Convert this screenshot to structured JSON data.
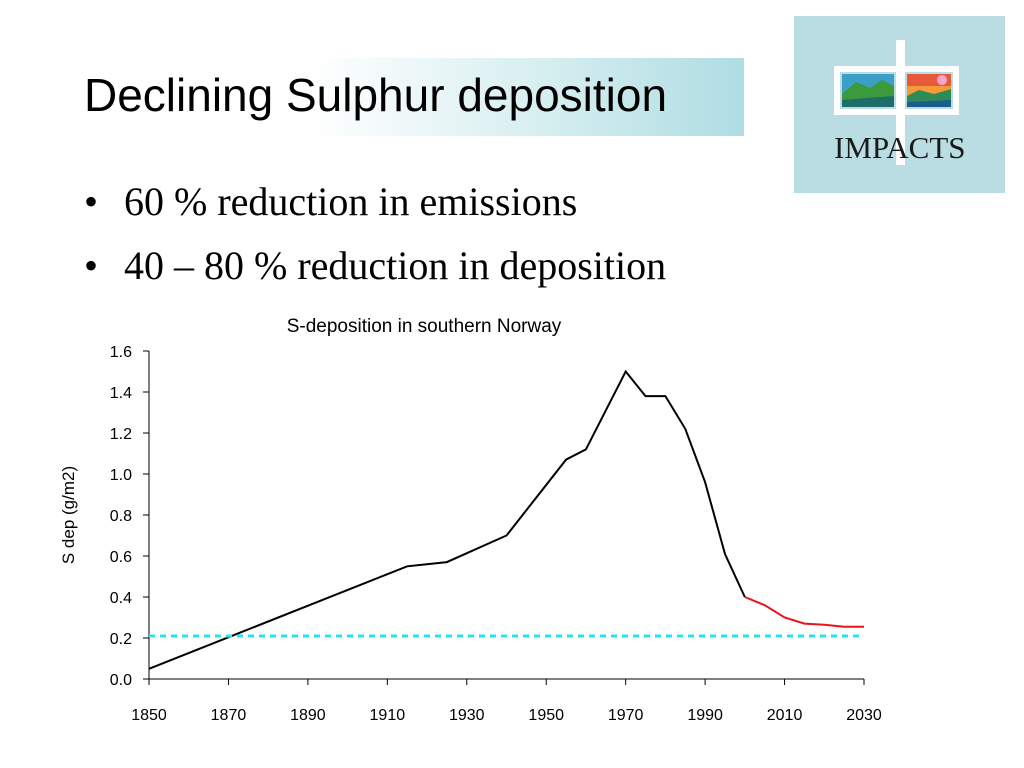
{
  "slide": {
    "title": "Declining Sulphur deposition",
    "bullets": [
      "60 % reduction in emissions",
      "40 – 80 % reduction in deposition"
    ],
    "bullet_glyph": "•",
    "logo_text": "IMPACTS"
  },
  "colors": {
    "observed_line": "#000000",
    "projected_line": "#e8141c",
    "reference_line": "#22e4f0",
    "logo_background": "#b9dde3"
  },
  "chart_data": {
    "type": "line",
    "title": "S-deposition in southern Norway",
    "xlabel": "",
    "ylabel": "S dep  (g/m2)",
    "xlim": [
      1850,
      2030
    ],
    "ylim": [
      0.0,
      1.6
    ],
    "x_ticks": [
      "1850",
      "1870",
      "1890",
      "1910",
      "1930",
      "1950",
      "1970",
      "1990",
      "2010",
      "2030"
    ],
    "y_ticks": [
      "0.0",
      "0.2",
      "0.4",
      "0.6",
      "0.8",
      "1.0",
      "1.2",
      "1.4",
      "1.6"
    ],
    "grid": false,
    "series": [
      {
        "role": "observed",
        "color": "#000000",
        "x": [
          1850,
          1915,
          1925,
          1940,
          1955,
          1960,
          1970,
          1975,
          1980,
          1985,
          1990,
          1995,
          2000
        ],
        "y": [
          0.05,
          0.55,
          0.57,
          0.7,
          1.07,
          1.12,
          1.5,
          1.38,
          1.38,
          1.22,
          0.96,
          0.61,
          0.4
        ]
      },
      {
        "role": "projected",
        "color": "#e8141c",
        "x": [
          2000,
          2005,
          2010,
          2015,
          2020,
          2025,
          2030
        ],
        "y": [
          0.4,
          0.36,
          0.3,
          0.27,
          0.265,
          0.255,
          0.255
        ]
      },
      {
        "role": "reference",
        "color": "#22e4f0",
        "style": "dashed",
        "x": [
          1850,
          2030
        ],
        "y": [
          0.21,
          0.21
        ]
      }
    ]
  }
}
